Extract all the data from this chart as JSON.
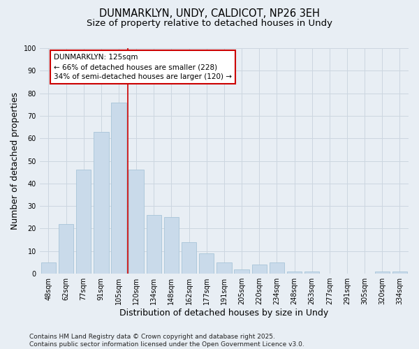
{
  "title_line1": "DUNMARKLYN, UNDY, CALDICOT, NP26 3EH",
  "title_line2": "Size of property relative to detached houses in Undy",
  "xlabel": "Distribution of detached houses by size in Undy",
  "ylabel": "Number of detached properties",
  "categories": [
    "48sqm",
    "62sqm",
    "77sqm",
    "91sqm",
    "105sqm",
    "120sqm",
    "134sqm",
    "148sqm",
    "162sqm",
    "177sqm",
    "191sqm",
    "205sqm",
    "220sqm",
    "234sqm",
    "248sqm",
    "263sqm",
    "277sqm",
    "291sqm",
    "305sqm",
    "320sqm",
    "334sqm"
  ],
  "values": [
    5,
    22,
    46,
    63,
    76,
    46,
    26,
    25,
    14,
    9,
    5,
    2,
    4,
    5,
    1,
    1,
    0,
    0,
    0,
    1,
    1
  ],
  "bar_color": "#c9daea",
  "bar_edgecolor": "#a8c4d8",
  "vline_color": "#cc0000",
  "annotation_text": "DUNMARKLYN: 125sqm\n← 66% of detached houses are smaller (228)\n34% of semi-detached houses are larger (120) →",
  "annotation_box_facecolor": "#ffffff",
  "annotation_box_edgecolor": "#cc0000",
  "ylim": [
    0,
    100
  ],
  "yticks": [
    0,
    10,
    20,
    30,
    40,
    50,
    60,
    70,
    80,
    90,
    100
  ],
  "grid_color": "#ccd6e0",
  "bg_color": "#e8eef4",
  "footer_text": "Contains HM Land Registry data © Crown copyright and database right 2025.\nContains public sector information licensed under the Open Government Licence v3.0.",
  "title_fontsize": 10.5,
  "subtitle_fontsize": 9.5,
  "axis_label_fontsize": 9,
  "tick_fontsize": 7,
  "annotation_fontsize": 7.5,
  "footer_fontsize": 6.5
}
